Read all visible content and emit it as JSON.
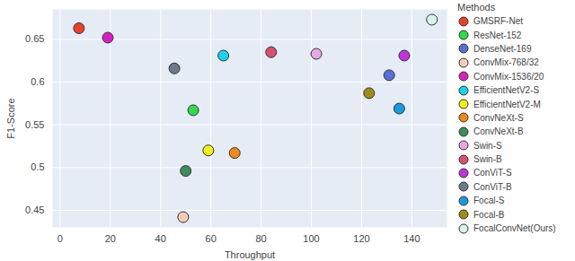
{
  "chart_data": {
    "type": "scatter",
    "x_label": "Throughput",
    "y_label": "F1-Score",
    "legend_title": "Methods",
    "xlim": [
      -3,
      154
    ],
    "xticks": [
      0,
      20,
      40,
      60,
      80,
      100,
      120,
      140
    ],
    "ylim": [
      0.43,
      0.685
    ],
    "yticks": [
      0.45,
      0.5,
      0.55,
      0.6,
      0.65
    ],
    "grid": true,
    "legend": "right",
    "marker": "circle",
    "series": [
      {
        "name": "GMSRF-Net",
        "color": "#e8412a",
        "x": [
          7.5
        ],
        "values": [
          0.663
        ]
      },
      {
        "name": "ResNet-152",
        "color": "#33d94a",
        "x": [
          53
        ],
        "values": [
          0.567
        ]
      },
      {
        "name": "DenseNet-169",
        "color": "#5a6ed8",
        "x": [
          131
        ],
        "values": [
          0.608
        ]
      },
      {
        "name": "ConvMix-768/32",
        "color": "#f5cbb8",
        "x": [
          49
        ],
        "values": [
          0.442
        ]
      },
      {
        "name": "ConvMix-1536/20",
        "color": "#d91fc1",
        "x": [
          19
        ],
        "values": [
          0.652
        ]
      },
      {
        "name": "EfficientNetV2-S",
        "color": "#1ad3e8",
        "x": [
          65
        ],
        "values": [
          0.631
        ]
      },
      {
        "name": "EfficientNetV2-M",
        "color": "#f0f020",
        "x": [
          59
        ],
        "values": [
          0.52
        ]
      },
      {
        "name": "ConvNeXt-S",
        "color": "#f08a1e",
        "x": [
          69.5
        ],
        "values": [
          0.517
        ]
      },
      {
        "name": "ConvNeXt-B",
        "color": "#3d8c5a",
        "x": [
          50
        ],
        "values": [
          0.496
        ]
      },
      {
        "name": "Swin-S",
        "color": "#e6a8e6",
        "x": [
          102
        ],
        "values": [
          0.633
        ]
      },
      {
        "name": "Swin-B",
        "color": "#d9506e",
        "x": [
          84
        ],
        "values": [
          0.635
        ]
      },
      {
        "name": "ConViT-S",
        "color": "#c233d9",
        "x": [
          137
        ],
        "values": [
          0.631
        ]
      },
      {
        "name": "ConViT-B",
        "color": "#6b7b8c",
        "x": [
          45.5
        ],
        "values": [
          0.616
        ]
      },
      {
        "name": "Focal-S",
        "color": "#1a9ae0",
        "x": [
          135
        ],
        "values": [
          0.569
        ]
      },
      {
        "name": "Focal-B",
        "color": "#a08a1a",
        "x": [
          123
        ],
        "values": [
          0.587
        ]
      },
      {
        "name": "FocalConvNet(Ours)",
        "color": "#d6f5e8",
        "x": [
          148
        ],
        "values": [
          0.673
        ]
      }
    ]
  }
}
